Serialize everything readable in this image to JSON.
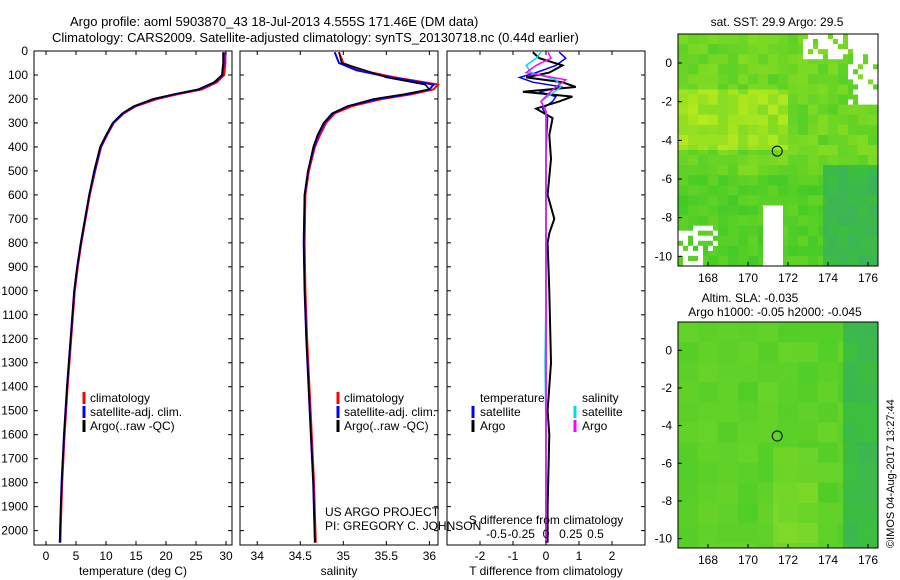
{
  "header": {
    "line1": "Argo profile: aoml 5903870_43 18-Jul-2013 4.555S 171.46E (DM data)",
    "line2": "Climatology: CARS2009. Satellite-adjusted climatology: synTS_20130718.nc (0.44d earlier)"
  },
  "colors": {
    "climatology": "#ff0000",
    "satellite": "#0000ff",
    "argo": "#000000",
    "s_satellite": "#00dddd",
    "s_argo": "#ff00ff"
  },
  "chart_data": [
    {
      "type": "line",
      "id": "temperature",
      "xlabel": "temperature (deg C)",
      "ylabel": "",
      "xlim": [
        -2,
        31
      ],
      "ylim": [
        2060,
        0
      ],
      "xticks": [
        "0",
        "5",
        "10",
        "15",
        "20",
        "25",
        "30"
      ],
      "xtick_values": [
        0,
        5,
        10,
        15,
        20,
        25,
        30
      ],
      "yticks": [
        "0",
        "100",
        "200",
        "300",
        "400",
        "500",
        "600",
        "700",
        "800",
        "900",
        "1000",
        "1100",
        "1200",
        "1300",
        "1400",
        "1500",
        "1600",
        "1700",
        "1800",
        "1900",
        "2000"
      ],
      "ytick_values": [
        0,
        100,
        200,
        300,
        400,
        500,
        600,
        700,
        800,
        900,
        1000,
        1100,
        1200,
        1300,
        1400,
        1500,
        1600,
        1700,
        1800,
        1900,
        2000
      ],
      "legend": [
        "climatology",
        "satellite-adj. clim.",
        "Argo(..raw -QC)"
      ],
      "series": [
        {
          "name": "climatology",
          "depth": [
            5,
            50,
            100,
            130,
            160,
            180,
            200,
            230,
            260,
            300,
            350,
            400,
            500,
            600,
            700,
            800,
            900,
            1000,
            1200,
            1400,
            1600,
            1800,
            1950,
            2050
          ],
          "values": [
            29.9,
            29.9,
            29.7,
            28.5,
            26,
            22,
            18.5,
            15,
            13,
            11.3,
            10.2,
            9.2,
            8.2,
            7.3,
            6.6,
            5.9,
            5.3,
            4.8,
            4.2,
            3.6,
            3.1,
            2.7,
            2.5,
            2.4
          ]
        },
        {
          "name": "satellite-adj. clim.",
          "depth": [
            5,
            50,
            100,
            130,
            160,
            180,
            200,
            230,
            260,
            300,
            350,
            400,
            500,
            600,
            700,
            800,
            900,
            1000,
            1200,
            1400,
            1600,
            1800,
            1950,
            2050
          ],
          "values": [
            29.6,
            29.6,
            29.4,
            28.2,
            25.5,
            21.5,
            18,
            14.8,
            12.8,
            11.2,
            10.1,
            9.1,
            8.1,
            7.2,
            6.5,
            5.8,
            5.2,
            4.7,
            4.1,
            3.5,
            3.0,
            2.6,
            2.4,
            2.3
          ]
        },
        {
          "name": "Argo(..raw -QC)",
          "depth": [
            5,
            50,
            100,
            130,
            160,
            180,
            200,
            230,
            260,
            300,
            350,
            400,
            500,
            600,
            700,
            800,
            900,
            1000,
            1200,
            1400,
            1600,
            1800,
            1950,
            2050
          ],
          "values": [
            29.5,
            29.5,
            29.3,
            28.0,
            25.3,
            21.3,
            17.8,
            14.6,
            12.7,
            11.1,
            10.0,
            9.0,
            8.0,
            7.2,
            6.5,
            5.8,
            5.2,
            4.7,
            4.1,
            3.5,
            3.0,
            2.6,
            2.4,
            2.3
          ]
        }
      ]
    },
    {
      "type": "line",
      "id": "salinity",
      "xlabel": "salinity",
      "xlim": [
        33.8,
        36.1
      ],
      "ylim": [
        2060,
        0
      ],
      "xticks": [
        "34",
        "34.5",
        "35",
        "35.5",
        "36"
      ],
      "xtick_values": [
        34,
        34.5,
        35,
        35.5,
        36
      ],
      "legend": [
        "climatology",
        "satellite-adj. clim.",
        "Argo(..raw -QC)"
      ],
      "series": [
        {
          "name": "climatology",
          "depth": [
            5,
            50,
            80,
            110,
            140,
            160,
            180,
            200,
            230,
            260,
            300,
            350,
            400,
            500,
            600,
            800,
            1000,
            1200,
            1500,
            1800,
            2050
          ],
          "values": [
            34.95,
            35.0,
            35.2,
            35.6,
            36.1,
            36.05,
            35.8,
            35.45,
            35.1,
            34.9,
            34.8,
            34.73,
            34.67,
            34.6,
            34.56,
            34.55,
            34.56,
            34.58,
            34.62,
            34.66,
            34.68
          ]
        },
        {
          "name": "satellite-adj. clim.",
          "depth": [
            5,
            50,
            80,
            110,
            140,
            160,
            180,
            200,
            230,
            260,
            300,
            350,
            400,
            500,
            600,
            800,
            1000,
            1200,
            1500,
            1800,
            2050
          ],
          "values": [
            34.9,
            34.95,
            35.15,
            35.55,
            36.05,
            36.0,
            35.75,
            35.4,
            35.05,
            34.88,
            34.78,
            34.71,
            34.66,
            34.59,
            34.55,
            34.54,
            34.55,
            34.57,
            34.61,
            34.65,
            34.67
          ]
        },
        {
          "name": "Argo(..raw -QC)",
          "depth": [
            5,
            50,
            80,
            110,
            140,
            160,
            180,
            200,
            230,
            260,
            300,
            350,
            400,
            500,
            600,
            800,
            1000,
            1200,
            1500,
            1800,
            2050
          ],
          "values": [
            34.95,
            34.98,
            35.25,
            35.5,
            35.95,
            36.0,
            35.7,
            35.35,
            35.05,
            34.87,
            34.77,
            34.7,
            34.65,
            34.59,
            34.55,
            34.54,
            34.55,
            34.57,
            34.61,
            34.65,
            34.67
          ]
        }
      ]
    },
    {
      "type": "line",
      "id": "difference",
      "xlabel": "T difference from climatology",
      "xlabel_top": "S difference from climatology",
      "xlim": [
        -3,
        3
      ],
      "ylim": [
        2060,
        0
      ],
      "xticks": [
        "-2",
        "-1",
        "0",
        "1",
        "2"
      ],
      "xtick_values": [
        -2,
        -1,
        0,
        1,
        2
      ],
      "s_xticks": [
        "-0.5",
        "-0.25",
        "0",
        "0.25",
        "0.5"
      ],
      "s_xtick_values": [
        -1.5,
        -0.75,
        0,
        0.75,
        1.5
      ],
      "legend_temperature": {
        "title": "temperature",
        "items": [
          "satellite",
          "Argo"
        ]
      },
      "legend_salinity": {
        "title": "salinity",
        "items": [
          "satellite",
          "Argo"
        ]
      },
      "series": [
        {
          "name": "T satellite",
          "depth": [
            5,
            30,
            60,
            90,
            110,
            130,
            150,
            170,
            190,
            210,
            240,
            280,
            350,
            450,
            600,
            800,
            1000,
            1300,
            1600,
            1900,
            2050
          ],
          "values": [
            0.4,
            0.6,
            0.3,
            -0.3,
            -0.8,
            -0.4,
            0.5,
            -0.2,
            0.3,
            0.2,
            -0.1,
            0.05,
            0.02,
            0.0,
            0.0,
            0.0,
            0.0,
            0.0,
            0.0,
            0.0,
            0.0
          ]
        },
        {
          "name": "T Argo",
          "depth": [
            5,
            30,
            60,
            90,
            110,
            130,
            150,
            170,
            190,
            210,
            240,
            280,
            350,
            450,
            600,
            700,
            760,
            800,
            1000,
            1300,
            1500,
            1600,
            1900,
            2050
          ],
          "values": [
            -0.4,
            -0.2,
            0.5,
            0.1,
            -0.6,
            0.5,
            0.9,
            -0.7,
            0.8,
            0.4,
            -0.3,
            0.2,
            0.1,
            0.15,
            0.05,
            0.25,
            0.1,
            0.05,
            0.1,
            0.15,
            0.05,
            0.1,
            0.05,
            0.05
          ]
        },
        {
          "name": "S satellite",
          "depth": [
            5,
            30,
            60,
            90,
            120,
            150,
            180,
            210,
            250,
            300,
            400,
            600,
            800,
            1000,
            1300,
            1600,
            1900,
            2050
          ],
          "values": [
            -0.05,
            -0.1,
            -0.2,
            -0.15,
            0.1,
            0.15,
            0.05,
            -0.05,
            0.0,
            0.0,
            0.0,
            0.0,
            0.0,
            0.0,
            -0.01,
            0.0,
            0.0,
            0.0
          ]
        },
        {
          "name": "S Argo",
          "depth": [
            5,
            30,
            60,
            90,
            120,
            150,
            180,
            210,
            250,
            300,
            400,
            600,
            800,
            1000,
            1300,
            1600,
            1900,
            2050
          ],
          "values": [
            0.02,
            0.05,
            -0.1,
            -0.2,
            0.2,
            0.1,
            0.02,
            -0.05,
            0.0,
            0.0,
            0.0,
            0.0,
            0.0,
            0.0,
            0.0,
            0.0,
            0.0,
            0.0
          ]
        }
      ]
    },
    {
      "type": "heatmap",
      "id": "sst_map",
      "title": "sat. SST: 29.9  Argo: 29.5",
      "xlim": [
        166.5,
        176.5
      ],
      "ylim": [
        -10.5,
        1.5
      ],
      "xticks": [
        "168",
        "170",
        "172",
        "174",
        "176"
      ],
      "xtick_values": [
        168,
        170,
        172,
        174,
        176
      ],
      "yticks": [
        "0",
        "-2",
        "-4",
        "-6",
        "-8",
        "-10"
      ],
      "ytick_values": [
        0,
        -2,
        -4,
        -6,
        -8,
        -10
      ],
      "marker": {
        "lon": 171.46,
        "lat": -4.555
      }
    },
    {
      "type": "heatmap",
      "id": "sla_map",
      "title": "Altim. SLA: -0.035",
      "subtitle": "Argo h1000: -0.05 h2000: -0.045",
      "xlim": [
        166.5,
        176.5
      ],
      "ylim": [
        -10.5,
        1.5
      ],
      "xticks": [
        "168",
        "170",
        "172",
        "174",
        "176"
      ],
      "xtick_values": [
        168,
        170,
        172,
        174,
        176
      ],
      "yticks": [
        "0",
        "-2",
        "-4",
        "-6",
        "-8",
        "-10"
      ],
      "ytick_values": [
        0,
        -2,
        -4,
        -6,
        -8,
        -10
      ],
      "marker": {
        "lon": 171.46,
        "lat": -4.555
      }
    }
  ],
  "annotations": {
    "project": "US ARGO PROJECT",
    "pi": "PI: GREGORY C. JOHNSON",
    "credit": "©IMOS 04-Aug-2017 13:27:44"
  }
}
